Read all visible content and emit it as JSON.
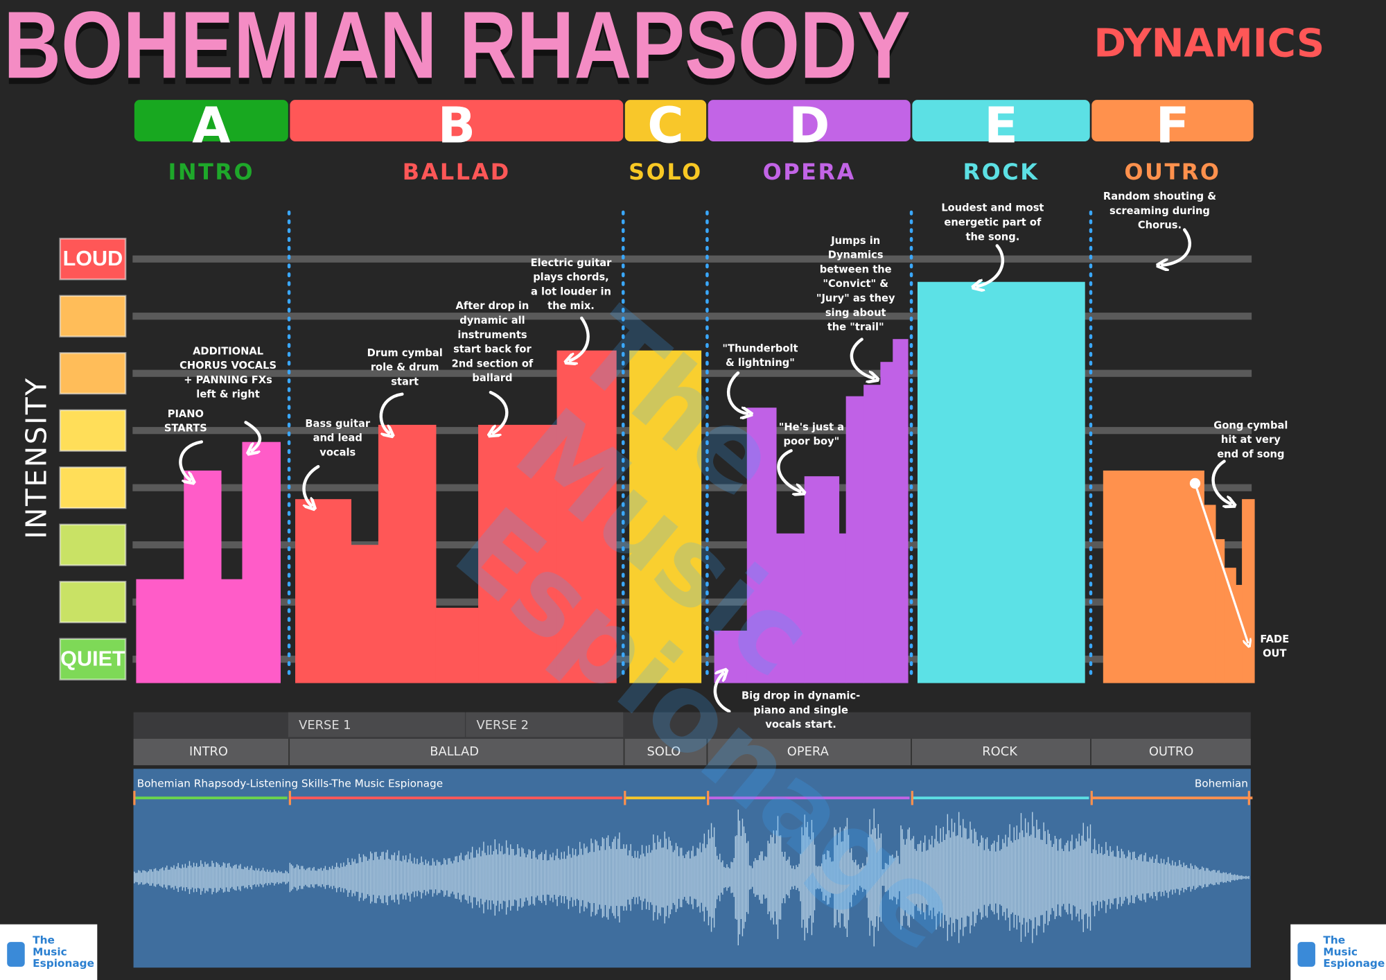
{
  "title": "BOHEMIAN RHAPSODY",
  "subtitle": "DYNAMICS",
  "axis_label": "INTENSITY",
  "level_labels": {
    "loud": "LOUD",
    "quiet": "QUIET"
  },
  "sections": [
    {
      "letter": "A",
      "name": "INTRO",
      "letter_color": "#18a820",
      "name_color": "#1ea82a",
      "bar_color": "#ff5cc8",
      "intensity": [
        2.4,
        4.3,
        2.4,
        4.8
      ]
    },
    {
      "letter": "B",
      "name": "BALLAD",
      "letter_color": "#ff5757",
      "name_color": "#ff5757",
      "bar_color": "#ff5757",
      "intensity": [
        3.8,
        3.0,
        5.1,
        1.9,
        5.1,
        6.4
      ]
    },
    {
      "letter": "C",
      "name": "SOLO",
      "letter_color": "#f8c72a",
      "name_color": "#f8c824",
      "bar_color": "#f9cf2f",
      "intensity": [
        6.4
      ]
    },
    {
      "letter": "D",
      "name": "OPERA",
      "letter_color": "#c264e6",
      "name_color": "#c264e6",
      "bar_color": "#c061e6",
      "intensity": [
        1.5,
        5.4,
        3.2,
        4.2,
        3.2,
        5.6,
        5.8,
        6.2,
        6.6
      ]
    },
    {
      "letter": "E",
      "name": "ROCK",
      "letter_color": "#5ce0e4",
      "name_color": "#5ce0e4",
      "bar_color": "#5ce1e6",
      "intensity": [
        7.6
      ]
    },
    {
      "letter": "F",
      "name": "OUTRO",
      "letter_color": "#ff914d",
      "name_color": "#ff914d",
      "bar_color": "#ff914d",
      "intensity": [
        4.3,
        3.7,
        3.1,
        2.6,
        2.3,
        3.8
      ]
    }
  ],
  "annotations": [
    [
      "PIANO",
      "STARTS"
    ],
    [
      "ADDITIONAL",
      "CHORUS VOCALS",
      "+ PANNING FXs",
      "left & right"
    ],
    [
      "Bass guitar",
      "and lead",
      "vocals"
    ],
    [
      "Drum cymbal",
      "role & drum",
      "start"
    ],
    [
      "After drop in",
      "dynamic all",
      "instruments",
      "start back for",
      "2nd section of",
      "ballard"
    ],
    [
      "Electric guitar",
      "plays chords,",
      "a lot louder in",
      "the mix."
    ],
    [
      "\"Thunderbolt",
      "& lightning\""
    ],
    [
      "\"He's just a",
      "poor boy\""
    ],
    [
      "Jumps in",
      "Dynamics",
      "between the",
      "\"Convict\" &",
      "\"Jury\" as they",
      "sing about",
      "the \"trail\""
    ],
    [
      "Big drop in dynamic-",
      "piano and single",
      "vocals start."
    ],
    [
      "Loudest and most",
      "energetic part of",
      "the song."
    ],
    [
      "Random shouting &",
      "screaming during",
      "Chorus."
    ],
    [
      "Gong cymbal",
      "hit at very",
      "end of song"
    ],
    [
      "FADE",
      "OUT"
    ]
  ],
  "timeline": {
    "verses": [
      "VERSE 1",
      "VERSE 2"
    ],
    "track_name": "Bohemian Rhapsody-Listening Skills-The Music Espionage",
    "track_name_short": "Bohemian"
  },
  "brand": [
    "The",
    "Music",
    "Espionage"
  ]
}
